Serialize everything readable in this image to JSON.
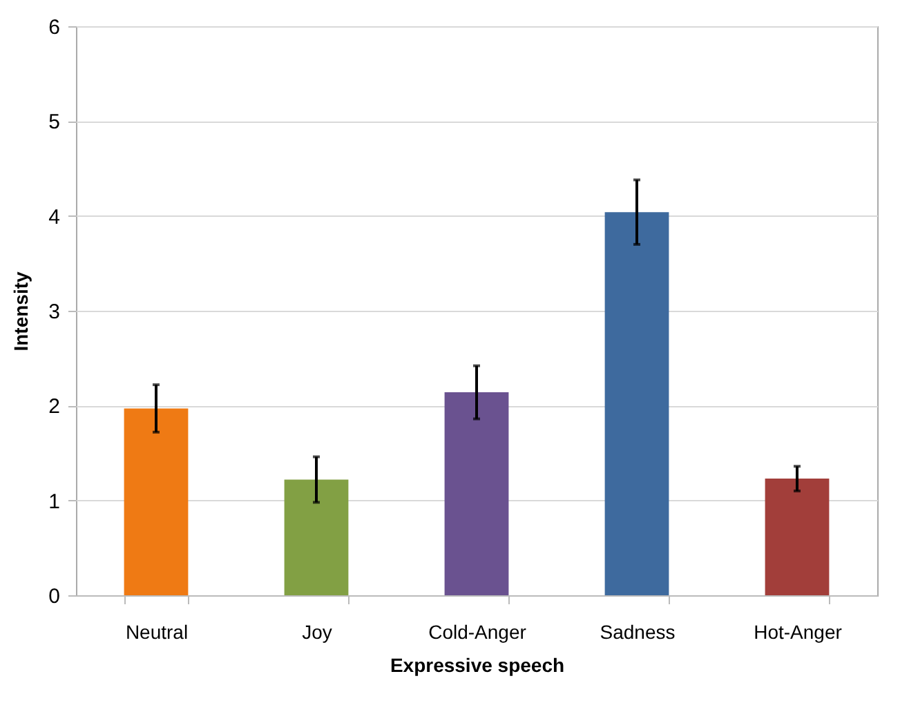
{
  "chart_data": {
    "type": "bar",
    "xlabel": "Expressive speech",
    "ylabel": "Intensity",
    "categories": [
      "Neutral",
      "Joy",
      "Cold-Anger",
      "Sadness",
      "Hot-Anger"
    ],
    "values": [
      1.97,
      1.22,
      2.14,
      4.04,
      1.23
    ],
    "errors": [
      0.25,
      0.24,
      0.28,
      0.34,
      0.13
    ],
    "colors": [
      "#ef7a14",
      "#82a044",
      "#6a5290",
      "#3e6a9e",
      "#a23e3a"
    ],
    "ylim": [
      0,
      6
    ],
    "yticks": [
      0,
      1,
      2,
      3,
      4,
      5,
      6
    ],
    "grid": "y"
  }
}
